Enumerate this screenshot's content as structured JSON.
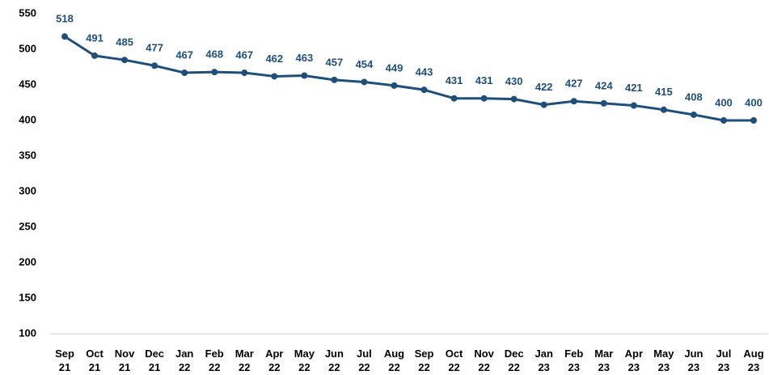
{
  "chart_data": {
    "type": "line",
    "categories": [
      "Sep\n21",
      "Oct\n21",
      "Nov\n21",
      "Dec\n21",
      "Jan\n22",
      "Feb\n22",
      "Mar\n22",
      "Apr\n22",
      "May\n22",
      "Jun\n22",
      "Jul\n22",
      "Aug\n22",
      "Sep\n22",
      "Oct\n22",
      "Nov\n22",
      "Dec\n22",
      "Jan\n23",
      "Feb\n23",
      "Mar\n23",
      "Apr\n23",
      "May\n23",
      "Jun\n23",
      "Jul\n23",
      "Aug\n23"
    ],
    "series": [
      {
        "color": "#1f4e79",
        "values": [
          518,
          491,
          485,
          477,
          467,
          468,
          467,
          462,
          463,
          457,
          454,
          449,
          443,
          431,
          431,
          430,
          422,
          427,
          424,
          421,
          415,
          408,
          400,
          400
        ]
      }
    ],
    "ylim": [
      100,
      550
    ],
    "yticks": [
      100,
      150,
      200,
      250,
      300,
      350,
      400,
      450,
      500,
      550
    ],
    "grid": false
  }
}
